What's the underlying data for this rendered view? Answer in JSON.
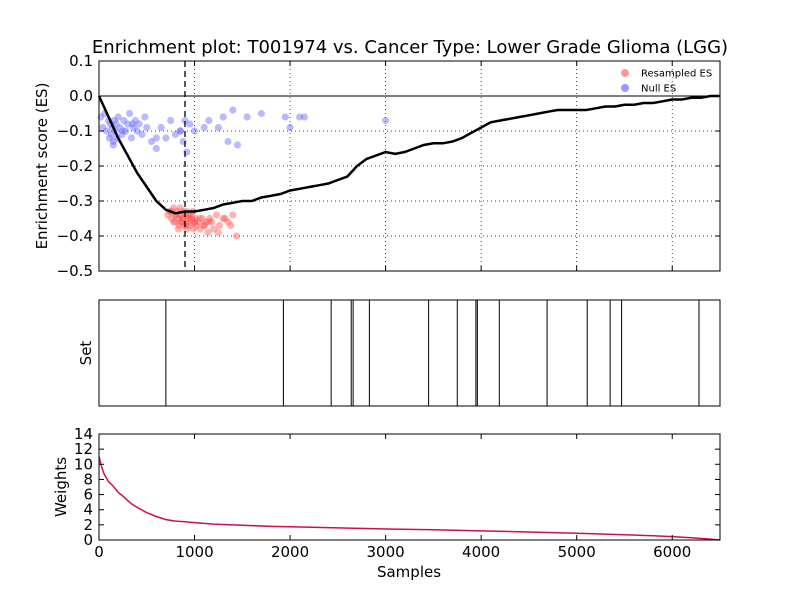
{
  "chart_data": [
    {
      "type": "line",
      "title": "Enrichment plot: T001974 vs. Cancer Type: Lower Grade Glioma (LGG)",
      "xlabel": "",
      "ylabel": "Enrichment score (ES)",
      "xlim": [
        0,
        6500
      ],
      "ylim": [
        -0.5,
        0.1
      ],
      "yticks": [
        0.1,
        0.0,
        -0.1,
        -0.2,
        -0.3,
        -0.4,
        -0.5
      ],
      "ytick_labels": [
        "0.1",
        "0.0",
        "−0.1",
        "−0.2",
        "−0.3",
        "−0.4",
        "−0.5"
      ],
      "grid": true,
      "legend_position": "top-right",
      "legend": [
        {
          "label": "Resampled ES",
          "color": "#ff9999"
        },
        {
          "label": "Null ES",
          "color": "#9999ff"
        }
      ],
      "running_es": {
        "x": [
          0,
          50,
          100,
          200,
          300,
          400,
          500,
          600,
          700,
          800,
          900,
          1000,
          1100,
          1200,
          1300,
          1400,
          1500,
          1600,
          1700,
          1800,
          1900,
          2000,
          2100,
          2200,
          2300,
          2400,
          2500,
          2600,
          2700,
          2800,
          2900,
          3000,
          3100,
          3200,
          3300,
          3400,
          3500,
          3600,
          3700,
          3800,
          3900,
          4000,
          4100,
          4200,
          4300,
          4400,
          4500,
          4600,
          4700,
          4800,
          4900,
          5000,
          5100,
          5200,
          5300,
          5400,
          5500,
          5600,
          5700,
          5800,
          5900,
          6000,
          6100,
          6200,
          6300,
          6400,
          6500
        ],
        "y": [
          0.0,
          -0.03,
          -0.06,
          -0.12,
          -0.17,
          -0.22,
          -0.26,
          -0.3,
          -0.325,
          -0.335,
          -0.33,
          -0.33,
          -0.325,
          -0.32,
          -0.31,
          -0.305,
          -0.3,
          -0.3,
          -0.29,
          -0.285,
          -0.28,
          -0.27,
          -0.265,
          -0.26,
          -0.255,
          -0.25,
          -0.24,
          -0.23,
          -0.2,
          -0.18,
          -0.17,
          -0.16,
          -0.165,
          -0.16,
          -0.15,
          -0.14,
          -0.135,
          -0.135,
          -0.13,
          -0.12,
          -0.105,
          -0.09,
          -0.075,
          -0.07,
          -0.065,
          -0.06,
          -0.055,
          -0.05,
          -0.045,
          -0.04,
          -0.04,
          -0.04,
          -0.04,
          -0.035,
          -0.03,
          -0.03,
          -0.025,
          -0.025,
          -0.02,
          -0.02,
          -0.015,
          -0.01,
          -0.01,
          -0.005,
          -0.005,
          0.0,
          0.0
        ]
      },
      "dashed_vline_x": 900,
      "resampled_es": {
        "x": [
          720,
          740,
          760,
          780,
          800,
          810,
          820,
          830,
          840,
          850,
          860,
          870,
          880,
          890,
          900,
          910,
          920,
          930,
          940,
          950,
          960,
          970,
          980,
          990,
          1000,
          1010,
          1020,
          1040,
          1060,
          1080,
          1100,
          1120,
          1140,
          1160,
          1180,
          1200,
          1230,
          1260,
          1300,
          1350,
          1380,
          1400,
          1440,
          760,
          800,
          850,
          880,
          920,
          960,
          1000,
          1050,
          1100,
          780,
          830,
          870,
          910,
          950,
          1150,
          1250,
          1320
        ],
        "y": [
          -0.34,
          -0.33,
          -0.35,
          -0.32,
          -0.36,
          -0.34,
          -0.33,
          -0.35,
          -0.37,
          -0.34,
          -0.36,
          -0.35,
          -0.33,
          -0.37,
          -0.34,
          -0.36,
          -0.38,
          -0.35,
          -0.34,
          -0.37,
          -0.36,
          -0.35,
          -0.33,
          -0.38,
          -0.36,
          -0.35,
          -0.37,
          -0.36,
          -0.38,
          -0.35,
          -0.37,
          -0.36,
          -0.39,
          -0.35,
          -0.36,
          -0.38,
          -0.34,
          -0.37,
          -0.35,
          -0.36,
          -0.37,
          -0.34,
          -0.4,
          -0.33,
          -0.34,
          -0.32,
          -0.35,
          -0.33,
          -0.34,
          -0.36,
          -0.35,
          -0.37,
          -0.36,
          -0.38,
          -0.36,
          -0.37,
          -0.35,
          -0.36,
          -0.39,
          -0.35
        ]
      },
      "null_es": {
        "x": [
          20,
          40,
          60,
          80,
          100,
          110,
          120,
          130,
          140,
          150,
          160,
          170,
          180,
          190,
          200,
          220,
          240,
          260,
          280,
          300,
          320,
          340,
          360,
          380,
          400,
          420,
          450,
          480,
          500,
          550,
          600,
          650,
          700,
          750,
          800,
          850,
          880,
          900,
          920,
          950,
          1000,
          1100,
          1150,
          1250,
          1300,
          1350,
          1400,
          1450,
          1550,
          1700,
          1950,
          2000,
          2100,
          2150,
          3000,
          150,
          250,
          350,
          600,
          850
        ],
        "y": [
          -0.06,
          -0.09,
          -0.05,
          -0.1,
          -0.07,
          -0.12,
          -0.08,
          -0.11,
          -0.09,
          -0.13,
          -0.07,
          -0.1,
          -0.08,
          -0.12,
          -0.06,
          -0.09,
          -0.11,
          -0.07,
          -0.1,
          -0.08,
          -0.05,
          -0.12,
          -0.09,
          -0.07,
          -0.1,
          -0.08,
          -0.11,
          -0.06,
          -0.09,
          -0.13,
          -0.15,
          -0.09,
          -0.12,
          -0.07,
          -0.11,
          -0.1,
          -0.13,
          -0.07,
          -0.16,
          -0.08,
          -0.1,
          -0.09,
          -0.07,
          -0.09,
          -0.06,
          -0.13,
          -0.04,
          -0.14,
          -0.06,
          -0.05,
          -0.06,
          -0.09,
          -0.06,
          -0.06,
          -0.07,
          -0.14,
          -0.1,
          -0.08,
          -0.12,
          -0.1
        ]
      }
    },
    {
      "type": "bar",
      "title": "",
      "xlabel": "",
      "ylabel": "Set",
      "xlim": [
        0,
        6500
      ],
      "hits": [
        700,
        1930,
        2430,
        2640,
        2660,
        2830,
        3450,
        3750,
        3945,
        3960,
        4190,
        4690,
        5110,
        5350,
        5470,
        6280
      ]
    },
    {
      "type": "line",
      "title": "",
      "xlabel": "Samples",
      "ylabel": "Weights",
      "xlim": [
        0,
        6500
      ],
      "ylim": [
        0,
        14
      ],
      "xticks": [
        0,
        1000,
        2000,
        3000,
        4000,
        5000,
        6000
      ],
      "yticks": [
        0,
        2,
        4,
        6,
        8,
        10,
        12,
        14
      ],
      "line_color": "#cc1144",
      "x": [
        0,
        20,
        50,
        100,
        150,
        200,
        250,
        300,
        350,
        400,
        500,
        600,
        700,
        800,
        900,
        1000,
        1200,
        1400,
        1600,
        1800,
        2000,
        2500,
        3000,
        3500,
        4000,
        4500,
        5000,
        5500,
        5800,
        6000,
        6200,
        6400,
        6500
      ],
      "y": [
        11.0,
        10.0,
        8.8,
        7.7,
        7.1,
        6.3,
        5.8,
        5.2,
        4.7,
        4.3,
        3.6,
        3.1,
        2.7,
        2.5,
        2.4,
        2.3,
        2.1,
        2.0,
        1.9,
        1.8,
        1.75,
        1.6,
        1.45,
        1.35,
        1.2,
        1.05,
        0.9,
        0.7,
        0.55,
        0.45,
        0.3,
        0.12,
        0.0
      ]
    }
  ]
}
